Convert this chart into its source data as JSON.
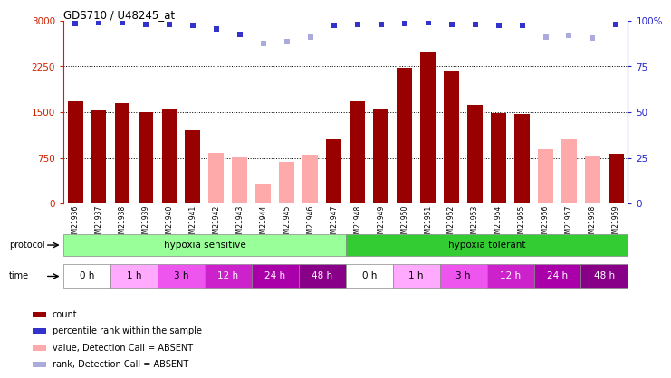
{
  "title": "GDS710 / U48245_at",
  "samples": [
    "GSM21936",
    "GSM21937",
    "GSM21938",
    "GSM21939",
    "GSM21940",
    "GSM21941",
    "GSM21942",
    "GSM21943",
    "GSM21944",
    "GSM21945",
    "GSM21946",
    "GSM21947",
    "GSM21948",
    "GSM21949",
    "GSM21950",
    "GSM21951",
    "GSM21952",
    "GSM21953",
    "GSM21954",
    "GSM21955",
    "GSM21956",
    "GSM21957",
    "GSM21958",
    "GSM21959"
  ],
  "bar_values": [
    1680,
    1530,
    1650,
    1500,
    1550,
    1200,
    840,
    760,
    330,
    680,
    800,
    1050,
    1680,
    1560,
    2220,
    2480,
    2180,
    1620,
    1480,
    1470,
    900,
    1060,
    770,
    820
  ],
  "bar_absent": [
    false,
    false,
    false,
    false,
    false,
    false,
    true,
    true,
    true,
    true,
    true,
    false,
    false,
    false,
    false,
    false,
    false,
    false,
    false,
    false,
    true,
    true,
    true,
    false
  ],
  "rank_values": [
    2950,
    2960,
    2970,
    2940,
    2940,
    2920,
    2870,
    2780,
    2620,
    2650,
    2730,
    2920,
    2940,
    2940,
    2950,
    2960,
    2940,
    2940,
    2930,
    2930,
    2730,
    2760,
    2720,
    2940
  ],
  "rank_absent": [
    false,
    false,
    false,
    false,
    false,
    false,
    false,
    false,
    true,
    true,
    true,
    false,
    false,
    false,
    false,
    false,
    false,
    false,
    false,
    false,
    true,
    true,
    true,
    false
  ],
  "ylim_left": [
    0,
    3000
  ],
  "ylim_right": [
    0,
    100
  ],
  "yticks_left": [
    0,
    750,
    1500,
    2250,
    3000
  ],
  "yticks_right": [
    0,
    25,
    50,
    75,
    100
  ],
  "bar_color_present": "#990000",
  "bar_color_absent": "#ffaaaa",
  "rank_color_present": "#3333cc",
  "rank_color_absent": "#aaaadd",
  "protocol_colors": [
    "#99ff99",
    "#33cc33"
  ],
  "protocol_labels": [
    "hypoxia sensitive",
    "hypoxia tolerant"
  ],
  "time_labels": [
    "0 h",
    "1 h",
    "3 h",
    "12 h",
    "24 h",
    "48 h",
    "0 h",
    "1 h",
    "3 h",
    "12 h",
    "24 h",
    "48 h"
  ],
  "time_bg_colors": [
    "#ffffff",
    "#ffaaff",
    "#ee55ee",
    "#cc22cc",
    "#aa00aa",
    "#880088",
    "#ffffff",
    "#ffaaff",
    "#ee55ee",
    "#cc22cc",
    "#aa00aa",
    "#880088"
  ],
  "time_fg_colors": [
    "#000000",
    "#000000",
    "#000000",
    "#ffffff",
    "#ffffff",
    "#ffffff",
    "#000000",
    "#000000",
    "#000000",
    "#ffffff",
    "#ffffff",
    "#ffffff"
  ],
  "legend_items": [
    {
      "color": "#990000",
      "label": "count"
    },
    {
      "color": "#3333cc",
      "label": "percentile rank within the sample"
    },
    {
      "color": "#ffaaaa",
      "label": "value, Detection Call = ABSENT"
    },
    {
      "color": "#aaaadd",
      "label": "rank, Detection Call = ABSENT"
    }
  ],
  "background_color": "#ffffff"
}
